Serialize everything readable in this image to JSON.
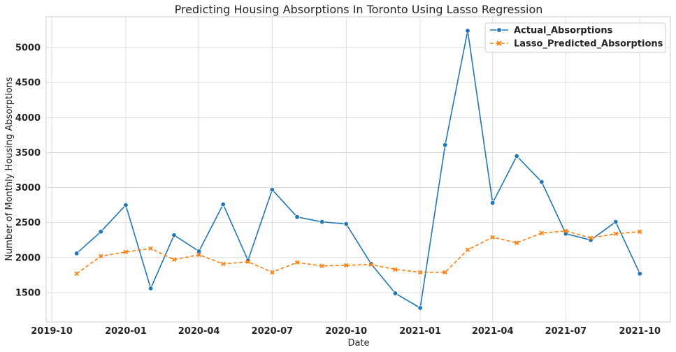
{
  "chart_data": {
    "type": "line",
    "title": "Predicting Housing Absorptions In Toronto Using Lasso Regression",
    "xlabel": "Date",
    "ylabel": "Number of Monthly Housing Absorptions",
    "x": [
      "2019-11-01",
      "2019-12-01",
      "2020-01-01",
      "2020-02-01",
      "2020-03-01",
      "2020-04-01",
      "2020-05-01",
      "2020-06-01",
      "2020-07-01",
      "2020-08-01",
      "2020-09-01",
      "2020-10-01",
      "2020-11-01",
      "2020-12-01",
      "2021-01-01",
      "2021-02-01",
      "2021-03-01",
      "2021-04-01",
      "2021-05-01",
      "2021-06-01",
      "2021-07-01",
      "2021-08-01",
      "2021-09-01",
      "2021-10-01"
    ],
    "xticks": [
      "2019-10",
      "2020-01",
      "2020-04",
      "2020-07",
      "2020-10",
      "2021-01",
      "2021-04",
      "2021-07",
      "2021-10"
    ],
    "xlim": [
      "2019-09-24",
      "2021-11-08"
    ],
    "yticks": [
      1500,
      2000,
      2500,
      3000,
      3500,
      4000,
      4500,
      5000
    ],
    "ylim": [
      1080,
      5440
    ],
    "grid": true,
    "legend_position": "top-right",
    "series": [
      {
        "name": "Actual_Absorptions",
        "color": "#1f77b4",
        "marker": "circle",
        "linestyle": "solid",
        "values": [
          2060,
          2370,
          2750,
          1560,
          2320,
          2090,
          2760,
          1960,
          2970,
          2580,
          2510,
          2480,
          1910,
          1490,
          1280,
          3610,
          5240,
          2780,
          3450,
          3080,
          2340,
          2250,
          2510,
          1770
        ]
      },
      {
        "name": "Lasso_Predicted_Absorptions",
        "color": "#ff7f0e",
        "marker": "x",
        "linestyle": "dashed",
        "values": [
          1770,
          2020,
          2080,
          2130,
          1970,
          2040,
          1910,
          1940,
          1790,
          1930,
          1880,
          1890,
          1900,
          1830,
          1790,
          1790,
          2110,
          2290,
          2210,
          2350,
          2380,
          2280,
          2340,
          2370
        ]
      }
    ]
  }
}
